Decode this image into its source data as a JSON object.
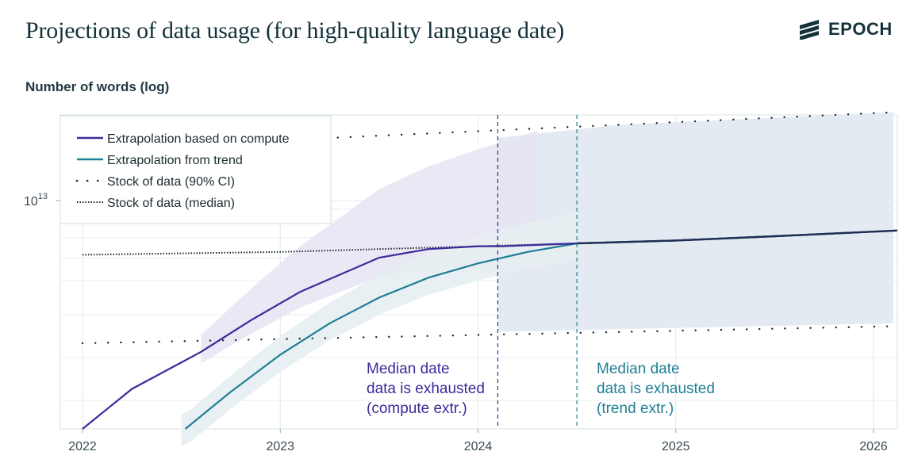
{
  "header": {
    "title": "Projections of data usage (for high-quality language date)",
    "brand": "EPOCH"
  },
  "chart_data": {
    "type": "line",
    "title": "Projections of data usage (for high-quality language date)",
    "xlabel": "",
    "ylabel": "Number of words (log)",
    "y_scale": "log",
    "xlim": [
      2022,
      2026.12
    ],
    "ylim_log10": [
      12.2,
      13.3
    ],
    "x_ticks": [
      "2022",
      "2023",
      "2024",
      "2025",
      "2026"
    ],
    "y_tick_label": {
      "base": "10",
      "exp": "13"
    },
    "grid": true,
    "legend_placement": "top-left",
    "colors": {
      "compute": "#3d2a9a",
      "trend": "#1f7f94",
      "stock": "#1b2b30",
      "band_compute": "#e6e4f3",
      "band_stock": "#e3e9f1",
      "band_trend": "#e6eef2"
    },
    "series": [
      {
        "name": "Extrapolation based on compute",
        "style": "solid",
        "x": [
          2022.0,
          2022.25,
          2022.6,
          2022.85,
          2023.1,
          2023.3,
          2023.5,
          2023.75,
          2024.0,
          2024.12,
          2024.5,
          2025.0,
          2025.5,
          2026.12
        ],
        "y_log10": [
          12.2,
          12.34,
          12.47,
          12.58,
          12.68,
          12.74,
          12.8,
          12.83,
          12.84,
          12.84,
          12.85,
          12.86,
          12.875,
          12.895
        ]
      },
      {
        "name": "Extrapolation from trend",
        "style": "solid",
        "x": [
          2022.52,
          2022.75,
          2023.0,
          2023.25,
          2023.5,
          2023.75,
          2024.0,
          2024.25,
          2024.5,
          2025.0,
          2025.5,
          2026.12
        ],
        "y_log10": [
          12.2,
          12.33,
          12.46,
          12.57,
          12.66,
          12.73,
          12.78,
          12.82,
          12.85,
          12.86,
          12.875,
          12.895
        ]
      },
      {
        "name": "Stock of data (median)",
        "style": "dotted-dense",
        "x": [
          2022.0,
          2023.0,
          2024.0,
          2024.5,
          2025.0,
          2026.12
        ],
        "y_log10": [
          12.81,
          12.82,
          12.84,
          12.85,
          12.86,
          12.895
        ]
      },
      {
        "name": "Stock of data (90% CI)",
        "style": "dotted-sparse",
        "upper": {
          "x": [
            2022.0,
            2026.12
          ],
          "y_log10": [
            13.18,
            13.31
          ]
        },
        "lower": {
          "x": [
            2022.0,
            2026.12
          ],
          "y_log10": [
            12.5,
            12.56
          ]
        }
      }
    ],
    "vlines": [
      {
        "x": 2024.1,
        "color": "#3d2a9a",
        "label": [
          "Median date",
          "data is exhausted",
          "(compute extr.)"
        ]
      },
      {
        "x": 2024.5,
        "color": "#1f7f94",
        "label": [
          "Median date",
          "data is exhausted",
          "(trend extr.)"
        ]
      }
    ]
  }
}
